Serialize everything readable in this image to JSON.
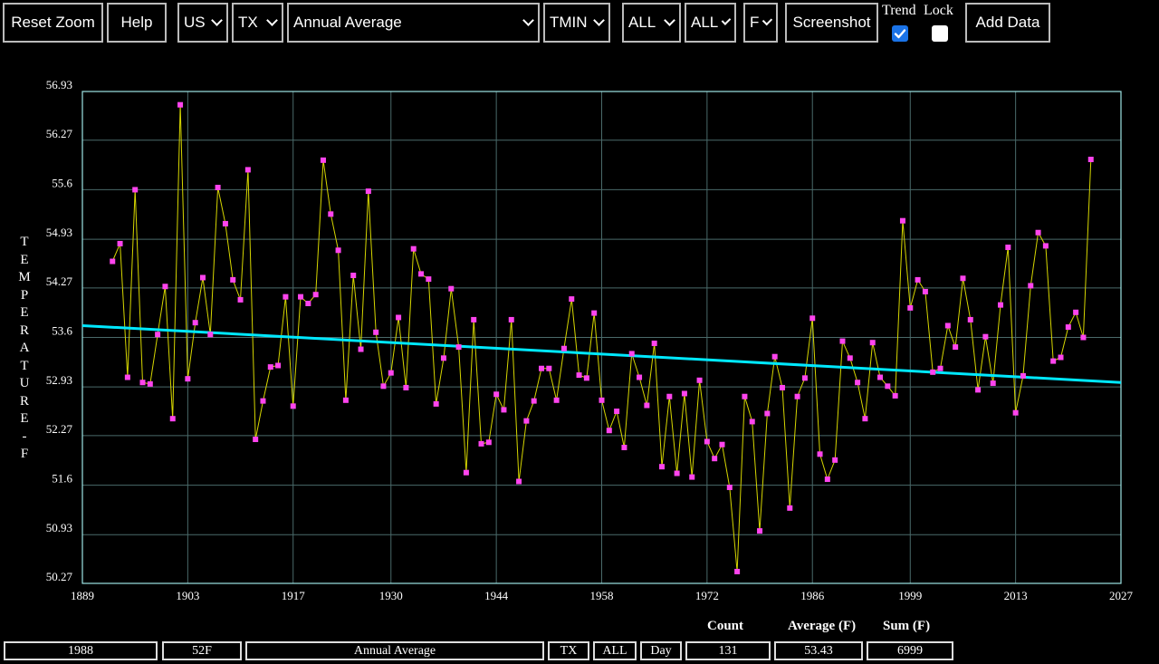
{
  "toolbar": {
    "reset_zoom": "Reset Zoom",
    "help": "Help",
    "country": "US",
    "state": "TX",
    "period": "Annual Average",
    "element": "TMIN",
    "filter1": "ALL",
    "filter2": "ALL",
    "units": "F",
    "screenshot": "Screenshot",
    "trend_label": "Trend",
    "trend_checked": true,
    "lock_label": "Lock",
    "lock_checked": false,
    "add_data": "Add Data"
  },
  "chart_data": {
    "type": "line",
    "ylabel": "TEMPERATURE-F",
    "xlim": [
      1889,
      2027
    ],
    "ylim": [
      50.27,
      56.93
    ],
    "x_ticks": [
      "1889",
      "1903",
      "1917",
      "1930",
      "1944",
      "1958",
      "1972",
      "1986",
      "1999",
      "2013",
      "2027"
    ],
    "y_ticks": [
      "50.27",
      "50.93",
      "51.6",
      "52.27",
      "52.93",
      "53.6",
      "54.27",
      "54.93",
      "55.6",
      "56.27",
      "56.93"
    ],
    "x": [
      1893,
      1894,
      1895,
      1896,
      1897,
      1898,
      1899,
      1900,
      1901,
      1902,
      1903,
      1904,
      1905,
      1906,
      1907,
      1908,
      1909,
      1910,
      1911,
      1912,
      1913,
      1914,
      1915,
      1916,
      1917,
      1918,
      1919,
      1920,
      1921,
      1922,
      1923,
      1924,
      1925,
      1926,
      1927,
      1928,
      1929,
      1930,
      1931,
      1932,
      1933,
      1934,
      1935,
      1936,
      1937,
      1938,
      1939,
      1940,
      1941,
      1942,
      1943,
      1944,
      1945,
      1946,
      1947,
      1948,
      1949,
      1950,
      1951,
      1952,
      1953,
      1954,
      1955,
      1956,
      1957,
      1958,
      1959,
      1960,
      1961,
      1962,
      1963,
      1964,
      1965,
      1966,
      1967,
      1968,
      1969,
      1970,
      1971,
      1972,
      1973,
      1974,
      1975,
      1976,
      1977,
      1978,
      1979,
      1980,
      1981,
      1982,
      1983,
      1984,
      1985,
      1986,
      1987,
      1988,
      1989,
      1990,
      1991,
      1992,
      1993,
      1994,
      1995,
      1996,
      1997,
      1998,
      1999,
      2000,
      2001,
      2002,
      2003,
      2004,
      2005,
      2006,
      2007,
      2008,
      2009,
      2010,
      2011,
      2012,
      2013,
      2014,
      2015,
      2016,
      2017,
      2018,
      2019,
      2020,
      2021,
      2022,
      2023
    ],
    "values": [
      54.63,
      54.87,
      53.06,
      55.6,
      52.99,
      52.97,
      53.64,
      54.29,
      52.5,
      56.75,
      53.04,
      53.8,
      54.41,
      53.64,
      55.63,
      55.14,
      54.38,
      54.11,
      55.87,
      52.22,
      52.74,
      53.2,
      53.22,
      54.15,
      52.67,
      54.15,
      54.06,
      54.18,
      56.0,
      55.27,
      54.78,
      52.75,
      54.44,
      53.44,
      55.58,
      53.67,
      52.94,
      53.12,
      53.87,
      52.92,
      54.8,
      54.46,
      54.39,
      52.7,
      53.32,
      54.26,
      53.47,
      51.77,
      53.84,
      52.16,
      52.18,
      52.83,
      52.62,
      53.84,
      51.65,
      52.47,
      52.74,
      53.18,
      53.18,
      52.75,
      53.45,
      54.12,
      53.09,
      53.05,
      53.93,
      52.75,
      52.34,
      52.6,
      52.11,
      53.38,
      53.06,
      52.68,
      53.52,
      51.85,
      52.8,
      51.76,
      52.84,
      51.71,
      53.02,
      52.19,
      51.96,
      52.15,
      51.57,
      50.43,
      52.8,
      52.46,
      50.98,
      52.57,
      53.34,
      52.92,
      51.29,
      52.8,
      53.05,
      53.86,
      52.02,
      51.68,
      51.94,
      53.55,
      53.32,
      52.99,
      52.5,
      53.53,
      53.06,
      52.94,
      52.81,
      55.18,
      54.0,
      54.38,
      54.22,
      53.13,
      53.18,
      53.76,
      53.47,
      54.4,
      53.84,
      52.89,
      53.61,
      52.98,
      54.04,
      54.82,
      52.58,
      53.08,
      54.3,
      55.02,
      54.84,
      53.28,
      53.33,
      53.74,
      53.94,
      53.6,
      56.01
    ],
    "trend": {
      "x": [
        1889,
        2027
      ],
      "y": [
        53.76,
        52.99
      ]
    },
    "colors": {
      "line": "#d6d600",
      "marker": "#ff44ee",
      "trend": "#00e8ff",
      "grid": "#4a6a6a",
      "frame": "#9de4e4"
    }
  },
  "stats": {
    "count_label": "Count",
    "avg_label": "Average (F)",
    "sum_label": "Sum (F)",
    "year": "1988",
    "value": "52F",
    "period": "Annual Average",
    "state": "TX",
    "filter": "ALL",
    "mode": "Day",
    "count": "131",
    "average": "53.43",
    "sum": "6999"
  }
}
